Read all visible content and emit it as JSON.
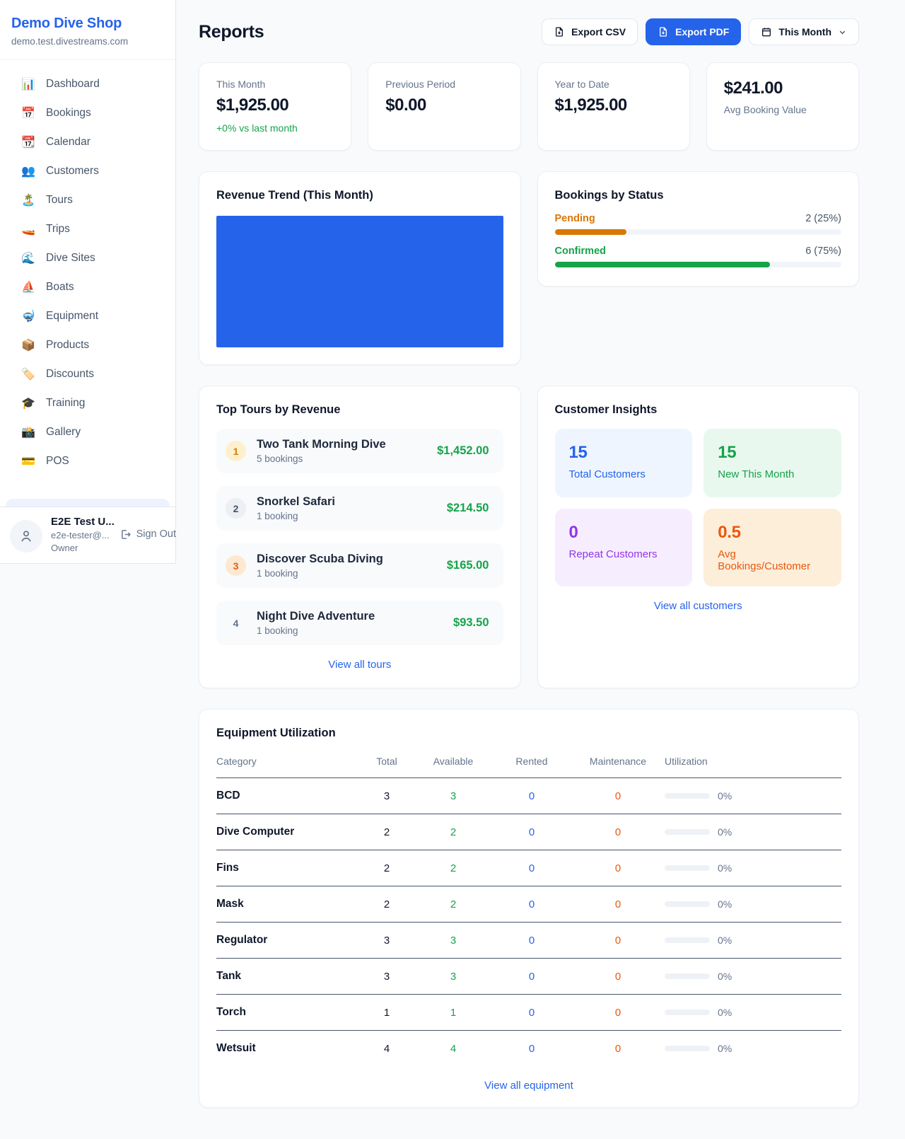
{
  "colors": {
    "accent_blue": "#2563eb",
    "chart_blue": "#2663eb",
    "green": "#16a34a",
    "amber": "#d97706",
    "orange": "#ea580c",
    "purple": "#9333ea"
  },
  "sidebar": {
    "brand": {
      "name": "Demo Dive Shop",
      "domain": "demo.test.divestreams.com"
    },
    "items": [
      {
        "icon": "📊",
        "label": "Dashboard"
      },
      {
        "icon": "📅",
        "label": "Bookings"
      },
      {
        "icon": "📆",
        "label": "Calendar"
      },
      {
        "icon": "👥",
        "label": "Customers"
      },
      {
        "icon": "🏝️",
        "label": "Tours"
      },
      {
        "icon": "🚤",
        "label": "Trips"
      },
      {
        "icon": "🌊",
        "label": "Dive Sites"
      },
      {
        "icon": "⛵",
        "label": "Boats"
      },
      {
        "icon": "🤿",
        "label": "Equipment"
      },
      {
        "icon": "📦",
        "label": "Products"
      },
      {
        "icon": "🏷️",
        "label": "Discounts"
      },
      {
        "icon": "🎓",
        "label": "Training"
      },
      {
        "icon": "📸",
        "label": "Gallery"
      },
      {
        "icon": "💳",
        "label": "POS"
      }
    ],
    "user": {
      "name": "E2E Test U...",
      "email": "e2e-tester@...",
      "role": "Owner",
      "sign_out_label": "Sign Out"
    }
  },
  "header": {
    "title": "Reports",
    "export_csv_label": "Export CSV",
    "export_pdf_label": "Export PDF",
    "period_label": "This Month"
  },
  "stats": [
    {
      "label": "This Month",
      "value": "$1,925.00",
      "delta": "+0% vs last month"
    },
    {
      "label": "Previous Period",
      "value": "$0.00"
    },
    {
      "label": "Year to Date",
      "value": "$1,925.00"
    },
    {
      "label": "Avg Booking Value",
      "value": "$241.00"
    }
  ],
  "revenue_trend": {
    "title": "Revenue Trend (This Month)"
  },
  "bookings_by_status": {
    "title": "Bookings by Status",
    "rows": [
      {
        "label": "Pending",
        "value": "2 (25%)",
        "pct": 25
      },
      {
        "label": "Confirmed",
        "value": "6 (75%)",
        "pct": 75
      }
    ]
  },
  "top_tours": {
    "title": "Top Tours by Revenue",
    "items": [
      {
        "rank": "1",
        "name": "Two Tank Morning Dive",
        "bookings": "5 bookings",
        "revenue": "$1,452.00"
      },
      {
        "rank": "2",
        "name": "Snorkel Safari",
        "bookings": "1 booking",
        "revenue": "$214.50"
      },
      {
        "rank": "3",
        "name": "Discover Scuba Diving",
        "bookings": "1 booking",
        "revenue": "$165.00"
      },
      {
        "rank": "4",
        "name": "Night Dive Adventure",
        "bookings": "1 booking",
        "revenue": "$93.50"
      }
    ],
    "view_all": "View all tours"
  },
  "customer_insights": {
    "title": "Customer Insights",
    "tiles": [
      {
        "value": "15",
        "label": "Total Customers"
      },
      {
        "value": "15",
        "label": "New This Month"
      },
      {
        "value": "0",
        "label": "Repeat Customers"
      },
      {
        "value": "0.5",
        "label": "Avg Bookings/Customer"
      }
    ],
    "view_all": "View all customers"
  },
  "equipment": {
    "title": "Equipment Utilization",
    "columns": [
      "Category",
      "Total",
      "Available",
      "Rented",
      "Maintenance",
      "Utilization"
    ],
    "rows": [
      {
        "category": "BCD",
        "total": "3",
        "available": "3",
        "rented": "0",
        "maintenance": "0",
        "utilization": "0%"
      },
      {
        "category": "Dive Computer",
        "total": "2",
        "available": "2",
        "rented": "0",
        "maintenance": "0",
        "utilization": "0%"
      },
      {
        "category": "Fins",
        "total": "2",
        "available": "2",
        "rented": "0",
        "maintenance": "0",
        "utilization": "0%"
      },
      {
        "category": "Mask",
        "total": "2",
        "available": "2",
        "rented": "0",
        "maintenance": "0",
        "utilization": "0%"
      },
      {
        "category": "Regulator",
        "total": "3",
        "available": "3",
        "rented": "0",
        "maintenance": "0",
        "utilization": "0%"
      },
      {
        "category": "Tank",
        "total": "3",
        "available": "3",
        "rented": "0",
        "maintenance": "0",
        "utilization": "0%"
      },
      {
        "category": "Torch",
        "total": "1",
        "available": "1",
        "rented": "0",
        "maintenance": "0",
        "utilization": "0%"
      },
      {
        "category": "Wetsuit",
        "total": "4",
        "available": "4",
        "rented": "0",
        "maintenance": "0",
        "utilization": "0%"
      }
    ],
    "view_all": "View all equipment"
  }
}
